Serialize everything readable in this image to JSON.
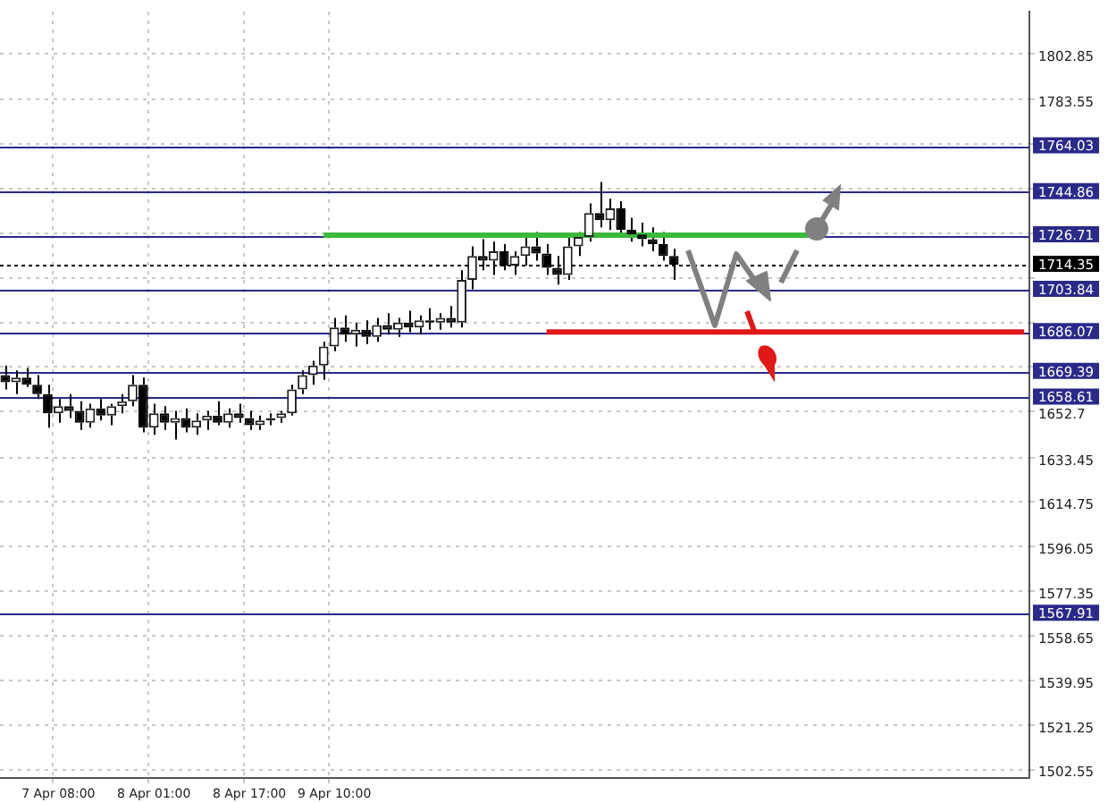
{
  "chart_data": {
    "type": "candlestick",
    "categories": [
      null,
      null,
      null,
      null,
      null,
      "7 Apr 08:00",
      null,
      null,
      null,
      null,
      null,
      null,
      null,
      null,
      "8 Apr 01:00",
      null,
      null,
      null,
      null,
      null,
      null,
      null,
      null,
      "8 Apr 17:00",
      null,
      null,
      null,
      null,
      null,
      null,
      null,
      "9 Apr 10:00",
      null,
      null,
      null,
      null,
      null,
      null,
      null,
      null,
      null,
      null,
      null,
      null,
      null,
      null,
      null,
      null,
      null,
      null,
      null,
      null,
      null,
      null,
      null,
      null,
      null,
      null,
      null,
      null,
      null,
      null,
      null,
      null,
      null,
      null,
      null,
      null,
      null,
      null,
      null,
      null,
      null,
      null,
      null,
      null,
      null,
      null,
      null,
      null,
      null,
      null,
      null,
      null,
      null,
      null,
      null,
      null,
      null,
      null,
      null,
      null,
      null,
      null,
      null,
      null,
      null
    ],
    "ohlc": [
      [
        1668,
        1672,
        1662,
        1665
      ],
      [
        1665,
        1670,
        1660,
        1667
      ],
      [
        1667,
        1671,
        1663,
        1664
      ],
      [
        1664,
        1668,
        1658,
        1660
      ],
      [
        1660,
        1664,
        1646,
        1652
      ],
      [
        1652,
        1658,
        1648,
        1655
      ],
      [
        1655,
        1660,
        1650,
        1653
      ],
      [
        1653,
        1657,
        1645,
        1648
      ],
      [
        1648,
        1656,
        1646,
        1654
      ],
      [
        1654,
        1658,
        1649,
        1651
      ],
      [
        1651,
        1656,
        1647,
        1655
      ],
      [
        1655,
        1660,
        1652,
        1657
      ],
      [
        1657,
        1668,
        1655,
        1664
      ],
      [
        1664,
        1667,
        1644,
        1646
      ],
      [
        1646,
        1656,
        1643,
        1652
      ],
      [
        1652,
        1655,
        1645,
        1648
      ],
      [
        1648,
        1653,
        1641,
        1650
      ],
      [
        1650,
        1654,
        1644,
        1646
      ],
      [
        1646,
        1652,
        1643,
        1649
      ],
      [
        1649,
        1653,
        1645,
        1651
      ],
      [
        1651,
        1657,
        1647,
        1648
      ],
      [
        1648,
        1654,
        1646,
        1652
      ],
      [
        1652,
        1656,
        1648,
        1650
      ],
      [
        1650,
        1653,
        1645,
        1647
      ],
      [
        1647,
        1651,
        1645,
        1649
      ],
      [
        1649,
        1652,
        1647,
        1650
      ],
      [
        1650,
        1653,
        1648,
        1652
      ],
      [
        1652,
        1664,
        1651,
        1662
      ],
      [
        1662,
        1670,
        1660,
        1668
      ],
      [
        1668,
        1674,
        1664,
        1672
      ],
      [
        1672,
        1682,
        1666,
        1680
      ],
      [
        1680,
        1692,
        1678,
        1688
      ],
      [
        1688,
        1693,
        1682,
        1685
      ],
      [
        1685,
        1690,
        1680,
        1687
      ],
      [
        1687,
        1691,
        1681,
        1684
      ],
      [
        1684,
        1692,
        1682,
        1689
      ],
      [
        1689,
        1694,
        1685,
        1687
      ],
      [
        1687,
        1692,
        1684,
        1690
      ],
      [
        1690,
        1695,
        1686,
        1688
      ],
      [
        1688,
        1693,
        1685,
        1691
      ],
      [
        1691,
        1696,
        1687,
        1690
      ],
      [
        1690,
        1694,
        1687,
        1692
      ],
      [
        1692,
        1697,
        1688,
        1690
      ],
      [
        1690,
        1712,
        1688,
        1708
      ],
      [
        1708,
        1722,
        1704,
        1718
      ],
      [
        1718,
        1725,
        1712,
        1716
      ],
      [
        1716,
        1724,
        1710,
        1720
      ],
      [
        1720,
        1723,
        1712,
        1714
      ],
      [
        1714,
        1720,
        1710,
        1718
      ],
      [
        1718,
        1726,
        1714,
        1722
      ],
      [
        1722,
        1728,
        1716,
        1719
      ],
      [
        1719,
        1723,
        1710,
        1713
      ],
      [
        1713,
        1718,
        1706,
        1710
      ],
      [
        1710,
        1726,
        1708,
        1722
      ],
      [
        1722,
        1728,
        1718,
        1726
      ],
      [
        1726,
        1740,
        1724,
        1736
      ],
      [
        1736,
        1749,
        1730,
        1733
      ],
      [
        1733,
        1742,
        1729,
        1738
      ],
      [
        1738,
        1741,
        1726,
        1729
      ],
      [
        1729,
        1734,
        1724,
        1727
      ],
      [
        1727,
        1732,
        1722,
        1725
      ],
      [
        1725,
        1730,
        1720,
        1723
      ],
      [
        1723,
        1728,
        1716,
        1718
      ],
      [
        1718,
        1721,
        1708,
        1714.35
      ],
      null,
      null,
      null,
      null,
      null,
      null,
      null,
      null,
      null,
      null,
      null,
      null,
      null,
      null,
      null,
      null,
      null,
      null,
      null,
      null,
      null,
      null,
      null,
      null,
      null,
      null,
      null,
      null,
      null,
      null,
      null,
      null,
      null
    ],
    "series": [
      {
        "type": "line",
        "color": "#3cb83c",
        "values": [
          null,
          null,
          null,
          null,
          null,
          null,
          null,
          null,
          null,
          null,
          null,
          null,
          null,
          null,
          null,
          null,
          null,
          null,
          null,
          null,
          null,
          null,
          null,
          null,
          null,
          null,
          null,
          null,
          null,
          null,
          1726.71,
          1726.71,
          1726.71,
          1726.71,
          1726.71,
          1726.71,
          1726.71,
          1726.71,
          1726.71,
          1726.71,
          1726.71,
          1726.71,
          1726.71,
          1726.71,
          1726.71,
          1726.71,
          1726.71,
          1726.71,
          1726.71,
          1726.71,
          1726.71,
          1726.71,
          1726.71,
          1726.71,
          1726.71,
          1726.71,
          1726.71,
          1726.71,
          1726.71,
          1726.71,
          1726.71,
          1726.71,
          1726.71,
          1726.71,
          1726.71,
          1726.71,
          1726.71,
          1726.71,
          1726.71,
          1726.71,
          1726.71,
          1726.71,
          1726.71,
          1726.71,
          1726.71,
          1726.71,
          1726.71,
          null,
          null,
          null,
          null,
          null,
          null,
          null,
          null,
          null,
          null,
          null,
          null,
          null,
          null,
          null,
          null,
          null,
          null,
          null,
          null
        ]
      },
      {
        "type": "line",
        "color": "#e01818",
        "values": [
          null,
          null,
          null,
          null,
          null,
          null,
          null,
          null,
          null,
          null,
          null,
          null,
          null,
          null,
          null,
          null,
          null,
          null,
          null,
          null,
          null,
          null,
          null,
          null,
          null,
          null,
          null,
          null,
          null,
          null,
          null,
          null,
          null,
          null,
          null,
          null,
          null,
          null,
          null,
          null,
          null,
          null,
          null,
          null,
          null,
          null,
          null,
          null,
          null,
          null,
          null,
          1686.07,
          1686.07,
          1686.07,
          1686.07,
          1686.07,
          1686.07,
          1686.07,
          1686.07,
          1686.07,
          1686.07,
          1686.07,
          1686.07,
          1686.07,
          1686.07,
          1686.07,
          1686.07,
          1686.07,
          1686.07,
          1686.07,
          1686.07,
          1686.07,
          1686.07,
          1686.07,
          1686.07,
          1686.07,
          1686.07,
          1686.07,
          1686.07,
          1686.07,
          1686.07,
          1686.07,
          1686.07,
          1686.07,
          1686.07,
          1686.07,
          1686.07,
          1686.07,
          1686.07,
          1686.07,
          1686.07,
          1686.07,
          1686.07,
          1686.07,
          1686.07,
          1686.07,
          1686.07
        ]
      }
    ],
    "ref_lines": [
      {
        "axis": "y",
        "value": 1764.03,
        "label": "1764.03",
        "color": "#2a2a8a"
      },
      {
        "axis": "y",
        "value": 1744.86,
        "label": "1744.86",
        "color": "#2a2a8a"
      },
      {
        "axis": "y",
        "value": 1726.71,
        "label": "1726.71",
        "color": "#2a2a8a"
      },
      {
        "axis": "y",
        "value": 1714.35,
        "label": "1714.35",
        "color": "#000000",
        "line_style": "dotted"
      },
      {
        "axis": "y",
        "value": 1703.84,
        "label": "1703.84",
        "color": "#2a2a8a"
      },
      {
        "axis": "y",
        "value": 1686.07,
        "label": "1686.07",
        "color": "#2a2a8a"
      },
      {
        "axis": "y",
        "value": 1669.39,
        "label": "1669.39",
        "color": "#2a2a8a"
      },
      {
        "axis": "y",
        "value": 1658.61,
        "label": "1658.61",
        "color": "#2a2a8a"
      },
      {
        "axis": "y",
        "value": 1567.91,
        "label": "1567.91",
        "color": "#2a2a8a"
      }
    ],
    "ylim": [
      1499,
      1820.5
    ],
    "yticks": [
      1502.55,
      1521.25,
      1539.95,
      1558.65,
      1577.35,
      1596.05,
      1614.75,
      1633.45,
      1652.7,
      {
        "value": 1671.4,
        "label": null
      },
      {
        "value": 1690.1,
        "label": null
      },
      {
        "value": 1708.8,
        "label": null
      },
      {
        "value": 1727.5,
        "label": null
      },
      {
        "value": 1746.2,
        "label": null
      },
      {
        "value": 1764.9,
        "label": null
      },
      1783.55,
      1802.85
    ],
    "grid": true,
    "legend": false,
    "marker": "none"
  }
}
